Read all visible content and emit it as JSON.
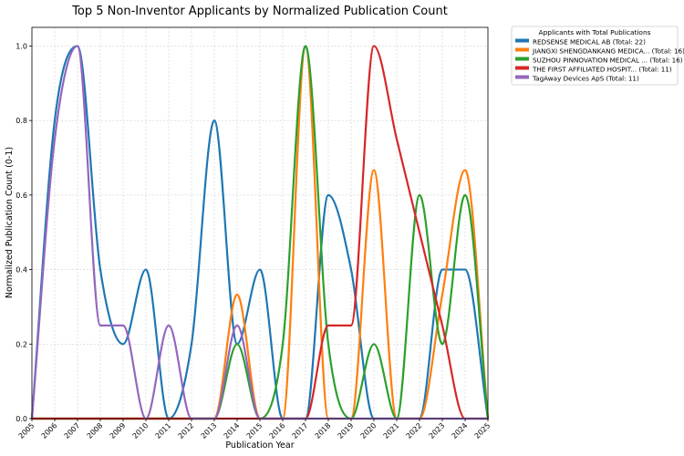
{
  "chart_data": {
    "type": "line",
    "title": "Top 5 Non-Inventor Applicants by Normalized Publication Count",
    "xlabel": "Publication Year",
    "ylabel": "Normalized Publication Count (0-1)",
    "xlim": [
      2005,
      2025
    ],
    "ylim": [
      0,
      1.05
    ],
    "x": [
      2005,
      2006,
      2007,
      2008,
      2009,
      2010,
      2011,
      2012,
      2013,
      2014,
      2015,
      2016,
      2017,
      2018,
      2019,
      2020,
      2021,
      2022,
      2023,
      2024,
      2025
    ],
    "xticks": [
      "2005",
      "2006",
      "2007",
      "2008",
      "2009",
      "2010",
      "2011",
      "2012",
      "2013",
      "2014",
      "2015",
      "2016",
      "2017",
      "2018",
      "2019",
      "2020",
      "2021",
      "2022",
      "2023",
      "2024",
      "2025"
    ],
    "yticks": [
      "0.0",
      "0.2",
      "0.4",
      "0.6",
      "0.8",
      "1.0"
    ],
    "grid": true,
    "legend_title": "Applicants with Total Publications",
    "legend_position": "outside-top-right",
    "series": [
      {
        "name": "REDSENSE MEDICAL AB (Total: 22)",
        "color": "#1f77b4",
        "values": [
          0,
          0.8,
          1.0,
          0.4,
          0.2,
          0.4,
          0,
          0.2,
          0.8,
          0.2,
          0.4,
          0,
          0,
          0.6,
          0.4,
          0,
          0,
          0,
          0.4,
          0.4,
          0
        ]
      },
      {
        "name": "JIANGXI SHENGDANKANG MEDICA... (Total: 16)",
        "color": "#ff7f0e",
        "values": [
          0,
          0,
          0,
          0,
          0,
          0,
          0,
          0,
          0,
          0.333,
          0,
          0,
          1.0,
          0,
          0,
          0.667,
          0,
          0,
          0.333,
          0.667,
          0
        ]
      },
      {
        "name": "SUZHOU PINNOVATION MEDICAL ... (Total: 16)",
        "color": "#2ca02c",
        "values": [
          0,
          0,
          0,
          0,
          0,
          0,
          0,
          0,
          0,
          0.2,
          0,
          0.2,
          1.0,
          0.2,
          0,
          0.2,
          0,
          0.6,
          0.2,
          0.6,
          0
        ]
      },
      {
        "name": "THE FIRST AFFILIATED HOSPIT... (Total: 11)",
        "color": "#d62728",
        "values": [
          0,
          0,
          0,
          0,
          0,
          0,
          0,
          0,
          0,
          0,
          0,
          0,
          0,
          0.25,
          0.25,
          1.0,
          0.75,
          0.5,
          0.25,
          0,
          0
        ]
      },
      {
        "name": "TagAway Devices ApS (Total: 11)",
        "color": "#9467bd",
        "values": [
          0,
          0.75,
          1.0,
          0.25,
          0.25,
          0,
          0.25,
          0,
          0,
          0.25,
          0,
          0,
          0,
          0,
          0,
          0,
          0,
          0,
          0,
          0,
          0
        ]
      }
    ]
  }
}
